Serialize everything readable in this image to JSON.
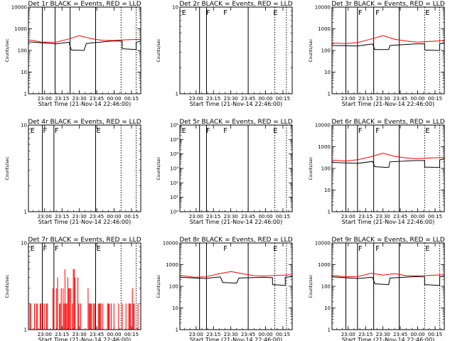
{
  "chart_data": {
    "type": "line",
    "layout": "3x3 grid",
    "yscale": "log",
    "colors": {
      "events": "#000000",
      "lld": "#ff0000",
      "axes": "#000000",
      "background": "#ffffff"
    },
    "time_axis": {
      "label": "Start Time (21-Nov-14 22:46:00)",
      "ticks": [
        "23:00",
        "23:15",
        "23:30",
        "23:45",
        "00:00",
        "00:15"
      ],
      "xlim": [
        "22:46",
        "00:23"
      ]
    },
    "ylabel": "Counts/sec",
    "panels": [
      {
        "title": "Det 1r  BLACK = Events, RED = LLD",
        "yticks": [
          {
            "v": 1,
            "t": "1"
          },
          {
            "v": 10,
            "t": "10"
          },
          {
            "v": 100,
            "t": "100"
          },
          {
            "v": 1000,
            "t": "1000"
          },
          {
            "v": 10000,
            "t": "10000"
          }
        ],
        "ylim": [
          1,
          10000
        ],
        "solid_lines": [
          "22:58",
          "23:09",
          "23:22",
          "23:44"
        ],
        "dotted_lines": [
          "00:06",
          "00:19"
        ],
        "flags": [],
        "events": [
          [
            "22:46",
            250
          ],
          [
            "23:10",
            200
          ],
          [
            "23:21",
            240
          ],
          [
            "23:23",
            105
          ],
          [
            "23:34",
            100
          ],
          [
            "23:36",
            210
          ],
          [
            "23:58",
            270
          ],
          [
            "00:07",
            270
          ],
          [
            "00:07",
            120
          ],
          [
            "00:19",
            110
          ],
          [
            "00:19",
            240
          ],
          [
            "00:23",
            260
          ]
        ],
        "lld": [
          [
            "22:46",
            310
          ],
          [
            "22:58",
            240
          ],
          [
            "23:10",
            240
          ],
          [
            "23:20",
            330
          ],
          [
            "23:30",
            480
          ],
          [
            "23:40",
            350
          ],
          [
            "23:50",
            290
          ],
          [
            "00:00",
            290
          ],
          [
            "00:10",
            310
          ],
          [
            "00:23",
            330
          ]
        ],
        "lld_noise": false
      },
      {
        "title": "Det 2r  BLACK = Events, RED = LLD",
        "yticks": [
          {
            "v": 1,
            "t": "1"
          },
          {
            "v": 10,
            "t": "10"
          }
        ],
        "ylim": [
          1,
          10
        ],
        "solid_lines": [
          "23:03",
          "23:09",
          "23:45"
        ],
        "dotted_lines": [
          "00:08",
          "00:18"
        ],
        "flags": [
          {
            "t": "22:47",
            "label": "E"
          },
          {
            "t": "23:08",
            "label": "F"
          },
          {
            "t": "23:23",
            "label": "F"
          },
          {
            "t": "00:06",
            "label": "E"
          }
        ],
        "events": [],
        "lld": [],
        "lld_noise": false
      },
      {
        "title": "Det 3r  BLACK = Events, RED = LLD",
        "yticks": [
          {
            "v": 1,
            "t": "1"
          },
          {
            "v": 10,
            "t": "10"
          },
          {
            "v": 100,
            "t": "100"
          },
          {
            "v": 1000,
            "t": "1000"
          },
          {
            "v": 10000,
            "t": "10000"
          }
        ],
        "ylim": [
          1,
          10000
        ],
        "solid_lines": [
          "22:58",
          "23:08",
          "23:22",
          "23:44"
        ],
        "dotted_lines": [
          "00:06",
          "00:19"
        ],
        "flags": [
          {
            "t": "23:08",
            "label": "F"
          },
          {
            "t": "23:23",
            "label": "F"
          },
          {
            "t": "00:06",
            "label": "E"
          }
        ],
        "events": [
          [
            "22:46",
            170
          ],
          [
            "23:08",
            160
          ],
          [
            "23:21",
            200
          ],
          [
            "23:23",
            110
          ],
          [
            "23:35",
            110
          ],
          [
            "23:36",
            170
          ],
          [
            "23:58",
            200
          ],
          [
            "00:06",
            200
          ],
          [
            "00:06",
            105
          ],
          [
            "00:19",
            100
          ],
          [
            "00:19",
            200
          ],
          [
            "00:23",
            230
          ]
        ],
        "lld": [
          [
            "22:46",
            220
          ],
          [
            "22:58",
            210
          ],
          [
            "23:08",
            230
          ],
          [
            "23:20",
            340
          ],
          [
            "23:30",
            480
          ],
          [
            "23:40",
            330
          ],
          [
            "23:50",
            270
          ],
          [
            "00:00",
            240
          ],
          [
            "00:10",
            260
          ],
          [
            "00:23",
            280
          ]
        ],
        "lld_noise": false
      },
      {
        "title": "Det 4r  BLACK = Events, RED = LLD",
        "yticks": [
          {
            "v": 1,
            "t": "1"
          },
          {
            "v": 10,
            "t": "10"
          }
        ],
        "ylim": [
          1,
          10
        ],
        "solid_lines": [
          "22:58",
          "23:08",
          "23:44"
        ],
        "dotted_lines": [
          "00:06",
          "00:19"
        ],
        "flags": [
          {
            "t": "22:47",
            "label": "E"
          },
          {
            "t": "22:58",
            "label": "F"
          },
          {
            "t": "23:08",
            "label": "F"
          },
          {
            "t": "23:44",
            "label": "E"
          }
        ],
        "events": [],
        "lld": [],
        "lld_noise": false
      },
      {
        "title": "Det 5r  BLACK = Events, RED = LLD",
        "yticks": [
          {
            "v": 1,
            "t": "10⁰"
          },
          {
            "v": 10,
            "t": "10¹"
          },
          {
            "v": 100,
            "t": "10²"
          },
          {
            "v": 1000,
            "t": "10³"
          },
          {
            "v": 10000,
            "t": "10⁴"
          },
          {
            "v": 100000,
            "t": "10⁵"
          },
          {
            "v": 1000000,
            "t": "10⁶"
          }
        ],
        "ylim": [
          1,
          1000000
        ],
        "solid_lines": [
          "23:03",
          "23:09",
          "23:45"
        ],
        "dotted_lines": [
          "00:08",
          "00:18"
        ],
        "flags": [
          {
            "t": "22:47",
            "label": "E"
          },
          {
            "t": "23:08",
            "label": "F"
          },
          {
            "t": "23:23",
            "label": "F"
          },
          {
            "t": "00:06",
            "label": "E"
          }
        ],
        "events": [],
        "lld": [],
        "lld_noise": false
      },
      {
        "title": "Det 6r  BLACK = Events, RED = LLD",
        "yticks": [
          {
            "v": 1,
            "t": "1"
          },
          {
            "v": 10,
            "t": "10"
          },
          {
            "v": 100,
            "t": "100"
          },
          {
            "v": 1000,
            "t": "1000"
          },
          {
            "v": 10000,
            "t": "10000"
          }
        ],
        "ylim": [
          1,
          10000
        ],
        "solid_lines": [
          "22:58",
          "23:08",
          "23:22",
          "23:44"
        ],
        "dotted_lines": [
          "00:06",
          "00:19"
        ],
        "flags": [
          {
            "t": "23:08",
            "label": "F"
          },
          {
            "t": "23:23",
            "label": "F"
          },
          {
            "t": "00:06",
            "label": "E"
          }
        ],
        "events": [
          [
            "22:46",
            190
          ],
          [
            "23:08",
            170
          ],
          [
            "23:21",
            210
          ],
          [
            "23:23",
            120
          ],
          [
            "23:35",
            110
          ],
          [
            "23:36",
            200
          ],
          [
            "23:58",
            230
          ],
          [
            "00:06",
            230
          ],
          [
            "00:06",
            115
          ],
          [
            "00:19",
            110
          ],
          [
            "00:19",
            250
          ],
          [
            "00:23",
            270
          ]
        ],
        "lld": [
          [
            "22:46",
            240
          ],
          [
            "22:58",
            220
          ],
          [
            "23:08",
            250
          ],
          [
            "23:20",
            350
          ],
          [
            "23:30",
            500
          ],
          [
            "23:40",
            360
          ],
          [
            "23:50",
            300
          ],
          [
            "00:00",
            280
          ],
          [
            "00:10",
            300
          ],
          [
            "00:23",
            320
          ]
        ],
        "lld_noise": false
      },
      {
        "title": "Det 7r  BLACK = Events, RED = LLD",
        "yticks": [
          {
            "v": 1,
            "t": "1"
          },
          {
            "v": 10,
            "t": "10"
          }
        ],
        "ylim": [
          1,
          10
        ],
        "solid_lines": [
          "22:58",
          "23:08",
          "23:44"
        ],
        "dotted_lines": [
          "00:06",
          "00:19"
        ],
        "flags": [
          {
            "t": "22:47",
            "label": "E"
          },
          {
            "t": "22:58",
            "label": "F"
          },
          {
            "t": "23:08",
            "label": "F"
          },
          {
            "t": "23:44",
            "label": "E"
          }
        ],
        "events": [],
        "lld": [],
        "lld_noise": true
      },
      {
        "title": "Det 8r  BLACK = Events, RED = LLD",
        "yticks": [
          {
            "v": 1,
            "t": "1"
          },
          {
            "v": 10,
            "t": "10"
          },
          {
            "v": 100,
            "t": "100"
          },
          {
            "v": 1000,
            "t": "1000"
          },
          {
            "v": 10000,
            "t": "10000"
          }
        ],
        "ylim": [
          1,
          10000
        ],
        "solid_lines": [
          "23:03",
          "23:09",
          "23:45"
        ],
        "dotted_lines": [
          "00:08",
          "00:18"
        ],
        "flags": [
          {
            "t": "23:23",
            "label": "F"
          },
          {
            "t": "00:06",
            "label": "E"
          }
        ],
        "events": [
          [
            "22:46",
            260
          ],
          [
            "23:08",
            230
          ],
          [
            "23:21",
            270
          ],
          [
            "23:23",
            150
          ],
          [
            "23:35",
            140
          ],
          [
            "23:37",
            240
          ],
          [
            "23:58",
            260
          ],
          [
            "00:06",
            250
          ],
          [
            "00:06",
            120
          ],
          [
            "00:17",
            110
          ],
          [
            "00:17",
            260
          ],
          [
            "00:23",
            280
          ]
        ],
        "lld": [
          [
            "22:46",
            320
          ],
          [
            "22:58",
            260
          ],
          [
            "23:08",
            270
          ],
          [
            "23:20",
            380
          ],
          [
            "23:30",
            480
          ],
          [
            "23:40",
            380
          ],
          [
            "23:50",
            310
          ],
          [
            "00:00",
            300
          ],
          [
            "00:10",
            320
          ],
          [
            "00:23",
            340
          ]
        ],
        "lld_noise": false
      },
      {
        "title": "Det 9r  BLACK = Events, RED = LLD",
        "yticks": [
          {
            "v": 1,
            "t": "1"
          },
          {
            "v": 10,
            "t": "10"
          },
          {
            "v": 100,
            "t": "100"
          },
          {
            "v": 1000,
            "t": "1000"
          },
          {
            "v": 10000,
            "t": "10000"
          }
        ],
        "ylim": [
          1,
          10000
        ],
        "solid_lines": [
          "22:58",
          "23:08",
          "23:22",
          "23:44"
        ],
        "dotted_lines": [
          "00:06",
          "00:19"
        ],
        "flags": [
          {
            "t": "23:08",
            "label": "F"
          },
          {
            "t": "23:23",
            "label": "F"
          },
          {
            "t": "00:06",
            "label": "E"
          }
        ],
        "events": [
          [
            "22:46",
            270
          ],
          [
            "23:08",
            230
          ],
          [
            "23:21",
            260
          ],
          [
            "23:23",
            130
          ],
          [
            "23:35",
            120
          ],
          [
            "23:36",
            240
          ],
          [
            "23:58",
            280
          ],
          [
            "00:06",
            270
          ],
          [
            "00:06",
            120
          ],
          [
            "00:19",
            110
          ],
          [
            "00:19",
            270
          ],
          [
            "00:23",
            290
          ]
        ],
        "lld": [
          [
            "22:46",
            320
          ],
          [
            "22:58",
            270
          ],
          [
            "23:08",
            280
          ],
          [
            "23:20",
            400
          ],
          [
            "23:30",
            330
          ],
          [
            "23:40",
            380
          ],
          [
            "23:50",
            310
          ],
          [
            "00:00",
            300
          ],
          [
            "00:10",
            320
          ],
          [
            "00:23",
            340
          ]
        ],
        "lld_noise": false
      }
    ]
  }
}
